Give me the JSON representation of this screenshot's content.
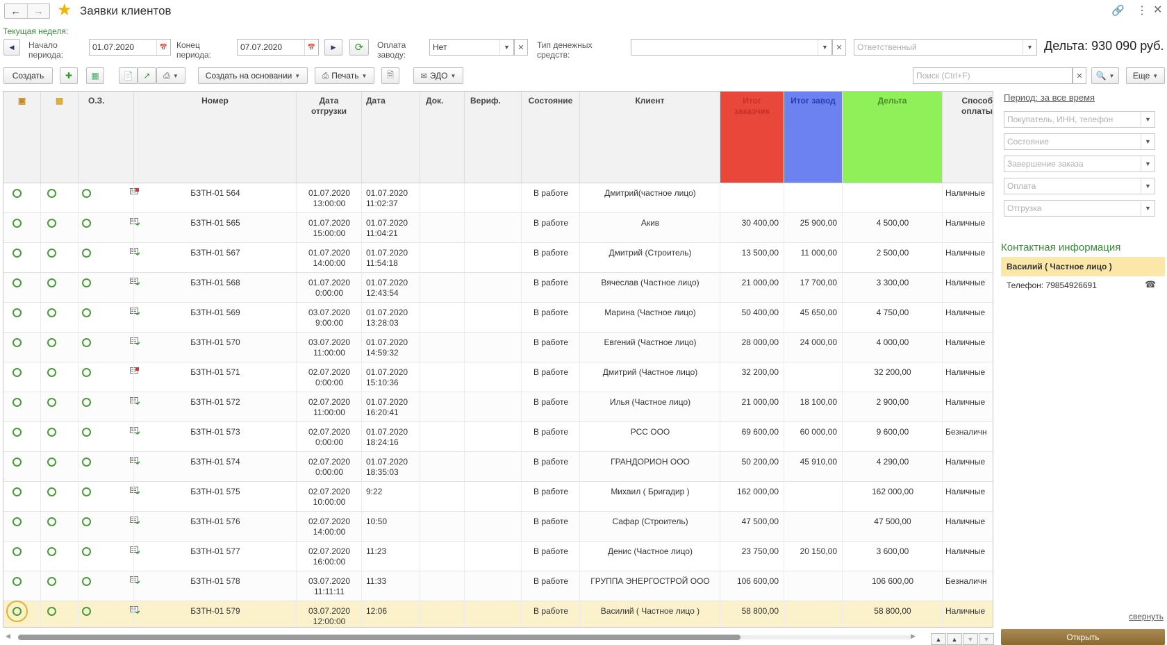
{
  "window": {
    "title": "Заявки клиентов"
  },
  "filters": {
    "current_week_link": "Текущая неделя:",
    "period_start_label": "Начало периода:",
    "period_start_value": "01.07.2020",
    "period_end_label": "Конец периода:",
    "period_end_value": "07.07.2020",
    "payment_factory_label": "Оплата заводу:",
    "payment_factory_value": "Нет",
    "money_type_label": "Тип денежных средств:",
    "money_type_value": "",
    "responsible_placeholder": "Ответственный",
    "delta_total": "Дельта: 930 090 руб."
  },
  "toolbar": {
    "create_label": "Создать",
    "create_based_label": "Создать на основании",
    "print_label": "Печать",
    "edo_label": "ЭДО",
    "search_placeholder": "Поиск (Ctrl+F)",
    "more_label": "Еще"
  },
  "table": {
    "columns": [
      "",
      "",
      "О.З.",
      "Номер",
      "Дата отгрузки",
      "Дата",
      "Док.",
      "Вериф.",
      "Состояние",
      "Клиент",
      "Итог заказчик",
      "Итог завод",
      "Дельта",
      "Способ оплаты"
    ],
    "column_colors": {
      "total_customer": "#e8473a",
      "total_factory": "#6b82f0",
      "delta": "#8ff05a"
    },
    "rows": [
      {
        "doc": "red",
        "number": "БЗТН-01 564",
        "ship_date": "01.07.2020",
        "ship_time": "13:00:00",
        "date": "01.07.2020",
        "time": "11:02:37",
        "state": "В работе",
        "client": "Дмитрий(частное лицо)",
        "total_customer": "",
        "total_factory": "",
        "delta": "",
        "payment": "Наличные"
      },
      {
        "doc": "green",
        "number": "БЗТН-01 565",
        "ship_date": "01.07.2020",
        "ship_time": "15:00:00",
        "date": "01.07.2020",
        "time": "11:04:21",
        "state": "В работе",
        "client": "Акив",
        "total_customer": "30 400,00",
        "total_factory": "25 900,00",
        "delta": "4 500,00",
        "payment": "Наличные"
      },
      {
        "doc": "green",
        "number": "БЗТН-01 567",
        "ship_date": "01.07.2020",
        "ship_time": "14:00:00",
        "date": "01.07.2020",
        "time": "11:54:18",
        "state": "В работе",
        "client": "Дмитрий (Строитель)",
        "total_customer": "13 500,00",
        "total_factory": "11 000,00",
        "delta": "2 500,00",
        "payment": "Наличные"
      },
      {
        "doc": "green",
        "number": "БЗТН-01 568",
        "ship_date": "01.07.2020",
        "ship_time": "0:00:00",
        "date": "01.07.2020",
        "time": "12:43:54",
        "state": "В работе",
        "client": "Вячеслав (Частное лицо)",
        "total_customer": "21 000,00",
        "total_factory": "17 700,00",
        "delta": "3 300,00",
        "payment": "Наличные"
      },
      {
        "doc": "green",
        "number": "БЗТН-01 569",
        "ship_date": "03.07.2020",
        "ship_time": "9:00:00",
        "date": "01.07.2020",
        "time": "13:28:03",
        "state": "В работе",
        "client": "Марина (Частное лицо)",
        "total_customer": "50 400,00",
        "total_factory": "45 650,00",
        "delta": "4 750,00",
        "payment": "Наличные"
      },
      {
        "doc": "green",
        "number": "БЗТН-01 570",
        "ship_date": "03.07.2020",
        "ship_time": "11:00:00",
        "date": "01.07.2020",
        "time": "14:59:32",
        "state": "В работе",
        "client": "Евгений (Частное лицо)",
        "total_customer": "28 000,00",
        "total_factory": "24 000,00",
        "delta": "4 000,00",
        "payment": "Наличные"
      },
      {
        "doc": "red",
        "number": "БЗТН-01 571",
        "ship_date": "02.07.2020",
        "ship_time": "0:00:00",
        "date": "01.07.2020",
        "time": "15:10:36",
        "state": "В работе",
        "client": "Дмитрий (Частное лицо)",
        "total_customer": "32 200,00",
        "total_factory": "",
        "delta": "32 200,00",
        "payment": "Наличные"
      },
      {
        "doc": "green",
        "number": "БЗТН-01 572",
        "ship_date": "02.07.2020",
        "ship_time": "11:00:00",
        "date": "01.07.2020",
        "time": "16:20:41",
        "state": "В работе",
        "client": "Илья (Частное лицо)",
        "total_customer": "21 000,00",
        "total_factory": "18 100,00",
        "delta": "2 900,00",
        "payment": "Наличные"
      },
      {
        "doc": "green",
        "number": "БЗТН-01 573",
        "ship_date": "02.07.2020",
        "ship_time": "0:00:00",
        "date": "01.07.2020",
        "time": "18:24:16",
        "state": "В работе",
        "client": "РСС ООО",
        "total_customer": "69 600,00",
        "total_factory": "60 000,00",
        "delta": "9 600,00",
        "payment": "Безналичн"
      },
      {
        "doc": "green",
        "number": "БЗТН-01 574",
        "ship_date": "02.07.2020",
        "ship_time": "0:00:00",
        "date": "01.07.2020",
        "time": "18:35:03",
        "state": "В работе",
        "client": "ГРАНДОРИОН ООО",
        "total_customer": "50 200,00",
        "total_factory": "45 910,00",
        "delta": "4 290,00",
        "payment": "Наличные"
      },
      {
        "doc": "green",
        "number": "БЗТН-01 575",
        "ship_date": "02.07.2020",
        "ship_time": "10:00:00",
        "date": "9:22",
        "time": "",
        "state": "В работе",
        "client": "Михаил ( Бригадир )",
        "total_customer": "162 000,00",
        "total_factory": "",
        "delta": "162 000,00",
        "payment": "Наличные"
      },
      {
        "doc": "green",
        "number": "БЗТН-01 576",
        "ship_date": "02.07.2020",
        "ship_time": "14:00:00",
        "date": "10:50",
        "time": "",
        "state": "В работе",
        "client": "Сафар (Строитель)",
        "total_customer": "47 500,00",
        "total_factory": "",
        "delta": "47 500,00",
        "payment": "Наличные"
      },
      {
        "doc": "green",
        "number": "БЗТН-01 577",
        "ship_date": "02.07.2020",
        "ship_time": "16:00:00",
        "date": "11:23",
        "time": "",
        "state": "В работе",
        "client": "Денис (Частное лицо)",
        "total_customer": "23 750,00",
        "total_factory": "20 150,00",
        "delta": "3 600,00",
        "payment": "Наличные"
      },
      {
        "doc": "green",
        "number": "БЗТН-01 578",
        "ship_date": "03.07.2020",
        "ship_time": "11:11:11",
        "date": "11:33",
        "time": "",
        "state": "В работе",
        "client": "ГРУППА ЭНЕРГОСТРОЙ ООО",
        "total_customer": "106 600,00",
        "total_factory": "",
        "delta": "106 600,00",
        "payment": "Безналичн"
      },
      {
        "doc": "green",
        "number": "БЗТН-01 579",
        "ship_date": "03.07.2020",
        "ship_time": "12:00:00",
        "date": "12:06",
        "time": "",
        "state": "В работе",
        "client": "Василий ( Частное лицо )",
        "total_customer": "58 800,00",
        "total_factory": "",
        "delta": "58 800,00",
        "payment": "Наличные",
        "selected": true
      }
    ]
  },
  "right_panel": {
    "period_link": "Период: за все время",
    "buyer_placeholder": "Покупатель, ИНН, телефон",
    "state_placeholder": "Состояние",
    "completion_placeholder": "Завершение заказа",
    "payment_placeholder": "Оплата",
    "shipment_placeholder": "Отгрузка",
    "contact_title": "Контактная информация",
    "contact_name": "Василий ( Частное лицо )",
    "contact_phone": "Телефон: 79854926691",
    "collapse_link": "свернуть",
    "open_button": "Открыть"
  }
}
